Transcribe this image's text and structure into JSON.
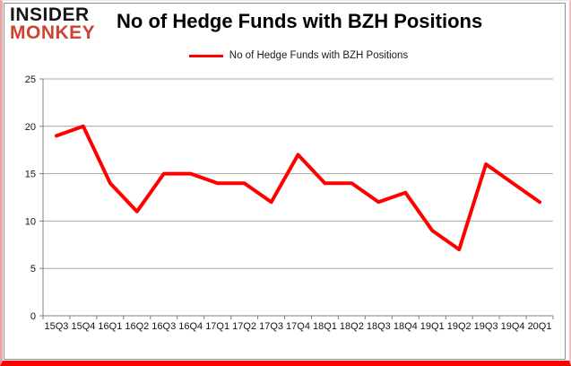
{
  "logo": {
    "line1": "INSIDER",
    "line2": "MONKEY"
  },
  "header": {
    "title": "No of Hedge Funds with BZH Positions"
  },
  "legend": {
    "label": "No of Hedge Funds with BZH Positions"
  },
  "colors": {
    "line": "#FF0000",
    "logo_black": "#151515",
    "logo_red": "#CE4330",
    "gridline": "#A6A6A6",
    "axis": "#808080",
    "border_bottom": "#FE0000",
    "border_pink": "#ECA4A4",
    "frame": "#8F8F8F"
  },
  "chart_data": {
    "type": "line",
    "title": "No of Hedge Funds with BZH Positions",
    "categories": [
      "15Q3",
      "15Q4",
      "16Q1",
      "16Q2",
      "16Q3",
      "16Q4",
      "17Q1",
      "17Q2",
      "17Q3",
      "17Q4",
      "18Q1",
      "18Q2",
      "18Q3",
      "18Q4",
      "19Q1",
      "19Q2",
      "19Q3",
      "19Q4",
      "20Q1"
    ],
    "series": [
      {
        "name": "No of Hedge Funds with BZH Positions",
        "color": "#FF0000",
        "values": [
          19,
          20,
          14,
          11,
          15,
          15,
          14,
          14,
          12,
          17,
          14,
          14,
          12,
          13,
          9,
          7,
          16,
          14,
          12
        ]
      }
    ],
    "xlabel": "",
    "ylabel": "",
    "ylim": [
      0,
      25
    ],
    "ytick_step": 5,
    "grid": "horizontal",
    "legend_position": "top-center"
  }
}
